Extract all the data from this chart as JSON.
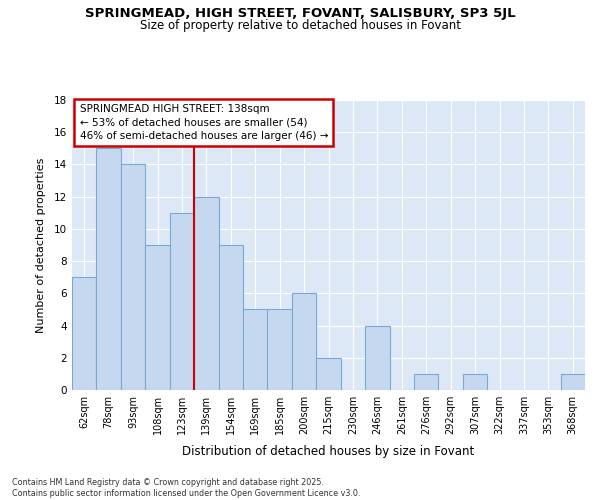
{
  "title": "SPRINGMEAD, HIGH STREET, FOVANT, SALISBURY, SP3 5JL",
  "subtitle": "Size of property relative to detached houses in Fovant",
  "xlabel": "Distribution of detached houses by size in Fovant",
  "ylabel": "Number of detached properties",
  "categories": [
    "62sqm",
    "78sqm",
    "93sqm",
    "108sqm",
    "123sqm",
    "139sqm",
    "154sqm",
    "169sqm",
    "185sqm",
    "200sqm",
    "215sqm",
    "230sqm",
    "246sqm",
    "261sqm",
    "276sqm",
    "292sqm",
    "307sqm",
    "322sqm",
    "337sqm",
    "353sqm",
    "368sqm"
  ],
  "values": [
    7,
    15,
    14,
    9,
    11,
    12,
    9,
    5,
    5,
    6,
    2,
    0,
    4,
    0,
    1,
    0,
    1,
    0,
    0,
    0,
    1
  ],
  "bar_color": "#c5d8f0",
  "bar_edge_color": "#7aaad4",
  "annotation_box_text": "SPRINGMEAD HIGH STREET: 138sqm\n← 53% of detached houses are smaller (54)\n46% of semi-detached houses are larger (46) →",
  "annotation_box_color": "#ffffff",
  "annotation_box_edge_color": "#cc0000",
  "vline_color": "#cc0000",
  "vline_x_index": 5.0,
  "ylim": [
    0,
    18
  ],
  "yticks": [
    0,
    2,
    4,
    6,
    8,
    10,
    12,
    14,
    16,
    18
  ],
  "footer": "Contains HM Land Registry data © Crown copyright and database right 2025.\nContains public sector information licensed under the Open Government Licence v3.0.",
  "plot_bg_color": "#dce8f5",
  "fig_bg_color": "#ffffff"
}
